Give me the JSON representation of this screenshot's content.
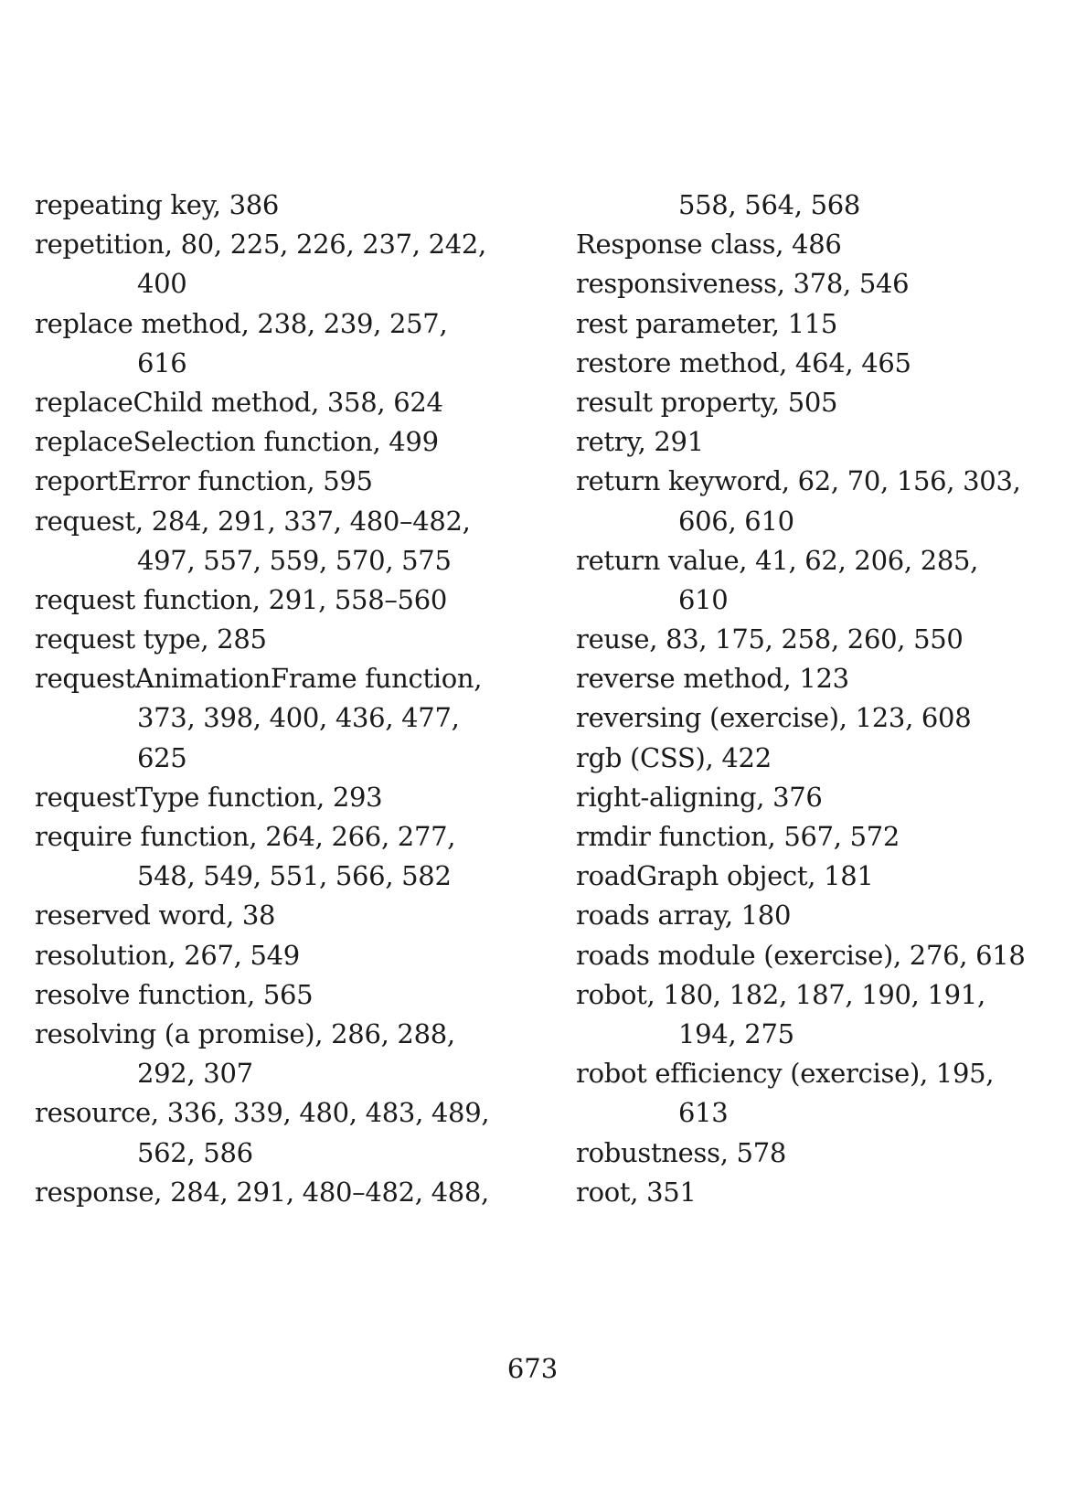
{
  "left_column": [
    {
      "text": "repeating key, 386",
      "cont": false
    },
    {
      "text": "repetition, 80, 225, 226, 237, 242,",
      "cont": false
    },
    {
      "text": "400",
      "cont": true
    },
    {
      "text": "replace  method,  238,  239,  257,",
      "cont": false
    },
    {
      "text": "616",
      "cont": true
    },
    {
      "text": "replaceChild method, 358, 624",
      "cont": false
    },
    {
      "text": "replaceSelection function, 499",
      "cont": false
    },
    {
      "text": "reportError function, 595",
      "cont": false
    },
    {
      "text": "request, 284, 291, 337, 480–482,",
      "cont": false
    },
    {
      "text": "497, 557, 559, 570, 575",
      "cont": true
    },
    {
      "text": "request function, 291, 558–560",
      "cont": false
    },
    {
      "text": "request type, 285",
      "cont": false
    },
    {
      "text": "requestAnimationFrame function,",
      "cont": false
    },
    {
      "text": "373,  398,  400,  436,  477,",
      "cont": true
    },
    {
      "text": "625",
      "cont": true
    },
    {
      "text": "requestType function, 293",
      "cont": false
    },
    {
      "text": "require  function,  264,  266,  277,",
      "cont": false
    },
    {
      "text": "548, 549, 551, 566, 582",
      "cont": true
    },
    {
      "text": "reserved word, 38",
      "cont": false
    },
    {
      "text": "resolution, 267, 549",
      "cont": false
    },
    {
      "text": "resolve function, 565",
      "cont": false
    },
    {
      "text": "resolving  (a  promise),  286,  288,",
      "cont": false
    },
    {
      "text": "292, 307",
      "cont": true
    },
    {
      "text": "resource, 336, 339, 480, 483, 489,",
      "cont": false
    },
    {
      "text": "562, 586",
      "cont": true
    },
    {
      "text": "response, 284, 291, 480–482, 488,",
      "cont": false
    }
  ],
  "right_column": [
    {
      "text": "558, 564, 568",
      "cont": true
    },
    {
      "text": "Response class, 486",
      "cont": false
    },
    {
      "text": "responsiveness, 378, 546",
      "cont": false
    },
    {
      "text": "rest parameter, 115",
      "cont": false
    },
    {
      "text": "restore method, 464, 465",
      "cont": false
    },
    {
      "text": "result property, 505",
      "cont": false
    },
    {
      "text": "retry, 291",
      "cont": false
    },
    {
      "text": "return keyword, 62, 70, 156, 303,",
      "cont": false
    },
    {
      "text": "606, 610",
      "cont": true
    },
    {
      "text": "return  value,  41,  62,  206,  285,",
      "cont": false
    },
    {
      "text": "610",
      "cont": true
    },
    {
      "text": "reuse, 83, 175, 258, 260, 550",
      "cont": false
    },
    {
      "text": "reverse method, 123",
      "cont": false
    },
    {
      "text": "reversing (exercise), 123, 608",
      "cont": false
    },
    {
      "text": "rgb (CSS), 422",
      "cont": false
    },
    {
      "text": "right-aligning, 376",
      "cont": false
    },
    {
      "text": "rmdir function, 567, 572",
      "cont": false
    },
    {
      "text": "roadGraph object, 181",
      "cont": false
    },
    {
      "text": "roads array, 180",
      "cont": false
    },
    {
      "text": "roads module (exercise), 276, 618",
      "cont": false
    },
    {
      "text": "robot,  180,  182,  187,  190,  191,",
      "cont": false
    },
    {
      "text": "194, 275",
      "cont": true
    },
    {
      "text": "robot  efficiency  (exercise),  195,",
      "cont": false
    },
    {
      "text": "613",
      "cont": true
    },
    {
      "text": "robustness, 578",
      "cont": false
    },
    {
      "text": "root, 351",
      "cont": false
    }
  ],
  "page_number": "673"
}
